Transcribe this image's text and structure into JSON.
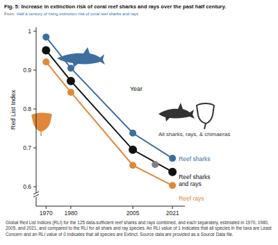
{
  "header": {
    "from_label": "From:",
    "source": "Half a century of rising extinction risk of coral reef sharks and rays"
  },
  "chart_data": {
    "type": "line",
    "title": "Fig. 5: Increase in extinction risk of coral reef sharks and rays over the past half century.",
    "y_label": "Red List Index",
    "x_label": "Year",
    "x": [
      1970,
      1980,
      2005,
      2021
    ],
    "xlim": [
      1966,
      2026
    ],
    "xticks": [
      1970,
      1980,
      2005,
      2021
    ],
    "ylim": [
      0.55,
      1.01
    ],
    "yticks": [
      0.6,
      0.7,
      0.8,
      0.9,
      1
    ],
    "grid": false,
    "marker": "circle",
    "series": [
      {
        "name": "Reef sharks",
        "color": "#3d6e9e",
        "values": [
          0.985,
          0.905,
          0.738,
          0.673
        ]
      },
      {
        "name": "Reef sharks and rays",
        "color": "#111111",
        "values": [
          0.951,
          0.872,
          0.695,
          0.638
        ]
      },
      {
        "name": "Reef rays",
        "color": "#e0883a",
        "values": [
          0.921,
          0.843,
          0.655,
          0.603
        ]
      },
      {
        "name": "All sharks, rays, & chimaeras",
        "color": "#7f7f7f",
        "type": "scatter",
        "x": [
          2014
        ],
        "values": [
          0.657
        ]
      }
    ]
  },
  "caption": "Global Red List Indices (RLI) for the 125 data-sufficient reef sharks and rays combined, and each separately, estimated in 1970, 1980, 2005, and 2021, and compared to the RLI for all shark and ray species. An RLI value of 1 indicates that all species in the taxa are Least Concern and an RLI value of 0 indicates that all species are Extinct. Source data are provided as a Source Data file."
}
